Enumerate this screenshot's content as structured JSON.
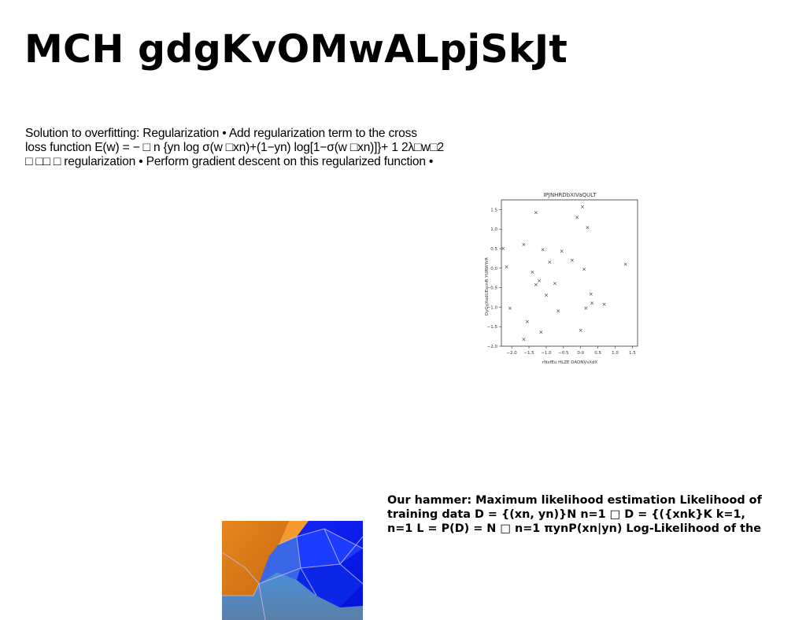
{
  "slide": {
    "title": "MCH gdgKvOMwALpjSkJt",
    "regularization_lines": [
      "Solution to overfitting: Regularization • Add regularization term to the cross",
      "loss function E(w) = − □ n {yn log σ(w □xn)+(1−yn) log[1−σ(w □xn)]}+ 1 2λ□w□2",
      "□ □□ □ regularization • Perform gradient descent on this regularized function •"
    ],
    "mle_lines": [
      "Our hammer: Maximum likelihood estimation Likelihood of",
      "training data D = {(xn, yn)}N n=1 □ D = {({xnk}K k=1,",
      "n=1 L = P(D) = N □ n=1 πynP(xn|yn) Log-Likelihood of the"
    ]
  },
  "chart_data": {
    "type": "scatter",
    "title": "IPJNHRDbXIVaQULT",
    "xlabel": "rNxfEu HLZE DAONVsXdX",
    "ylabel": "DyGyXodUEscnR YURWYrR",
    "xlim": [
      -2.3,
      1.65
    ],
    "ylim": [
      -2.0,
      1.75
    ],
    "xticks": [
      -2.0,
      -1.5,
      -1.0,
      -0.5,
      0.0,
      0.5,
      1.0,
      1.5
    ],
    "yticks": [
      -2.0,
      -1.5,
      -1.0,
      -0.5,
      0.0,
      0.5,
      1.0,
      1.5
    ],
    "marker": "x",
    "color": "#ee82ee",
    "points": [
      [
        -2.25,
        0.5
      ],
      [
        -2.15,
        0.03
      ],
      [
        -2.05,
        -1.03
      ],
      [
        -1.65,
        0.6
      ],
      [
        -1.55,
        -1.38
      ],
      [
        -1.65,
        -1.83
      ],
      [
        -1.4,
        -0.1
      ],
      [
        -1.3,
        1.42
      ],
      [
        -1.3,
        -0.43
      ],
      [
        -1.2,
        -0.33
      ],
      [
        -1.15,
        -1.65
      ],
      [
        -1.1,
        0.47
      ],
      [
        -1.0,
        -0.7
      ],
      [
        -0.9,
        0.15
      ],
      [
        -0.75,
        -0.4
      ],
      [
        -0.65,
        -1.1
      ],
      [
        -0.55,
        0.43
      ],
      [
        -0.25,
        0.2
      ],
      [
        -0.1,
        1.3
      ],
      [
        0.0,
        -1.6
      ],
      [
        0.05,
        1.57
      ],
      [
        0.1,
        -0.03
      ],
      [
        0.15,
        -1.03
      ],
      [
        0.2,
        1.03
      ],
      [
        0.3,
        -0.67
      ],
      [
        0.33,
        -0.9
      ],
      [
        0.68,
        -0.93
      ],
      [
        1.3,
        0.1
      ]
    ]
  },
  "image": {
    "description_icon": "3d-surface-plot-icon"
  }
}
